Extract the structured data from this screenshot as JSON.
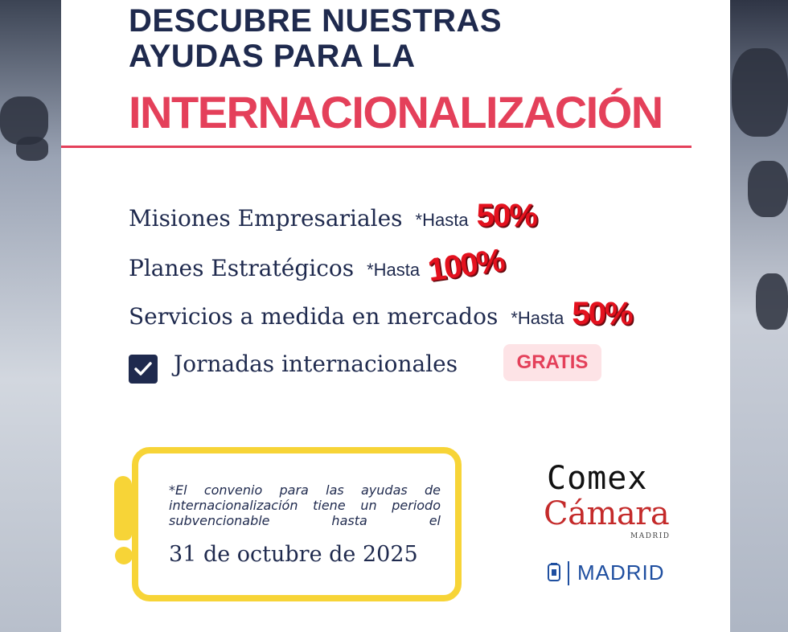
{
  "header": {
    "line1": "DESCUBRE NUESTRAS",
    "line2": "AYUDAS PARA LA",
    "highlight": "INTERNACIONALIZACIÓN"
  },
  "aids": [
    {
      "label": "Misiones Empresariales",
      "note": "*Hasta",
      "percent": "50%"
    },
    {
      "label": "Planes Estratégicos",
      "note": "*Hasta",
      "percent": "100%"
    },
    {
      "label": "Servicios a medida en mercados",
      "note": "*Hasta",
      "percent": "50%"
    }
  ],
  "jornadas": {
    "label": "Jornadas internacionales",
    "badge": "GRATIS",
    "checked": true
  },
  "notice": {
    "text": "*El convenio para las ayudas de internacionalización tiene un periodo subvencionable hasta el",
    "date": "31 de octubre de 2025"
  },
  "logos": {
    "comex": "Comex",
    "camara": "Cámara",
    "camara_sub": "MADRID",
    "city": "MADRID"
  },
  "colors": {
    "navy": "#1f2a4e",
    "accent_pink": "#e4405a",
    "percent_red": "#e4111e",
    "notice_yellow": "#f7d437",
    "badge_bg": "#fde3e6",
    "city_blue": "#1f4fa0"
  },
  "icons": [
    "checkbox-checked-icon",
    "exclamation-icon",
    "madrid-emblem-icon"
  ]
}
